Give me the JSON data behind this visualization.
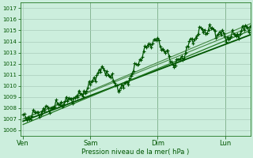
{
  "bg_color": "#cceedd",
  "grid_color": "#aaccbb",
  "line_color_dark": "#005500",
  "line_color_mid": "#227722",
  "line_color_light": "#448844",
  "xtick_labels": [
    "Ven",
    "Sam",
    "Dim",
    "Lun"
  ],
  "xtick_positions": [
    0,
    48,
    96,
    144
  ],
  "xlabel": "Pression niveau de la mer( hPa )",
  "ymin": 1005.5,
  "ymax": 1017.5,
  "xmin": -2,
  "xmax": 162
}
